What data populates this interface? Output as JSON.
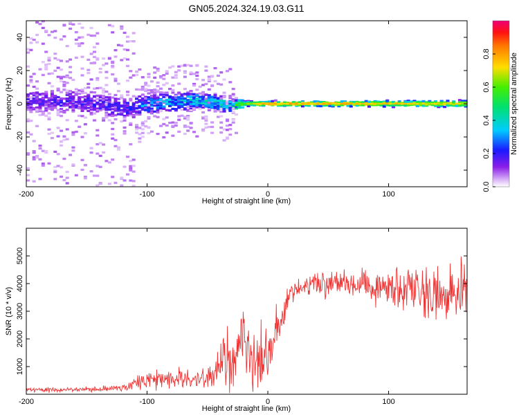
{
  "title": "GN05.2024.324.19.03.G11",
  "chart_data": [
    {
      "type": "heatmap",
      "name": "spectrogram",
      "xlabel": "Height of straight line (km)",
      "ylabel": "Frequency (Hz)",
      "xlim": [
        -200,
        165
      ],
      "ylim": [
        -50,
        50
      ],
      "xticks": [
        "-200",
        "-100",
        "0",
        "100"
      ],
      "yticks": [
        "40",
        "20",
        "0",
        "-20",
        "-40"
      ],
      "colorbar": {
        "label": "Normalized spectral amplitude",
        "range": [
          0,
          1
        ],
        "ticks": [
          "0.0",
          "0.2",
          "0.4",
          "0.6",
          "0.8"
        ]
      },
      "band_center_hz": [
        {
          "x": -200,
          "y": 2
        },
        {
          "x": -150,
          "y": 1
        },
        {
          "x": -120,
          "y": -3
        },
        {
          "x": -100,
          "y": 0
        },
        {
          "x": -60,
          "y": 2
        },
        {
          "x": -30,
          "y": -1
        },
        {
          "x": -20,
          "y": 0
        },
        {
          "x": 165,
          "y": 0
        }
      ],
      "band_halfwidth_hz": [
        {
          "x": -200,
          "y": 9
        },
        {
          "x": -120,
          "y": 8
        },
        {
          "x": -60,
          "y": 6
        },
        {
          "x": -25,
          "y": 5
        },
        {
          "x": -20,
          "y": 1.5
        },
        {
          "x": 165,
          "y": 2
        }
      ],
      "peak_amplitude": [
        {
          "x": -200,
          "y": 0.18
        },
        {
          "x": -120,
          "y": 0.22
        },
        {
          "x": -100,
          "y": 0.35
        },
        {
          "x": -60,
          "y": 0.4
        },
        {
          "x": -30,
          "y": 0.5
        },
        {
          "x": -20,
          "y": 0.65
        },
        {
          "x": 0,
          "y": 0.8
        },
        {
          "x": 100,
          "y": 0.75
        },
        {
          "x": 165,
          "y": 0.7
        }
      ]
    },
    {
      "type": "line",
      "name": "snr",
      "xlabel": "Height of straight line (km)",
      "ylabel": "SNR (10 * v/v)",
      "xlim": [
        -200,
        165
      ],
      "ylim": [
        0,
        6000
      ],
      "xticks": [
        "-200",
        "-100",
        "0",
        "100"
      ],
      "yticks": [
        "1000",
        "2000",
        "3000",
        "4000",
        "5000"
      ],
      "color": "#ee3333",
      "series": [
        {
          "name": "SNR",
          "points": [
            {
              "x": -200,
              "y": 150
            },
            {
              "x": -150,
              "y": 170
            },
            {
              "x": -120,
              "y": 250
            },
            {
              "x": -100,
              "y": 500
            },
            {
              "x": -60,
              "y": 550
            },
            {
              "x": -45,
              "y": 700
            },
            {
              "x": -30,
              "y": 1500
            },
            {
              "x": -20,
              "y": 2200
            },
            {
              "x": -12,
              "y": 1500
            },
            {
              "x": 0,
              "y": 1400
            },
            {
              "x": 10,
              "y": 2800
            },
            {
              "x": 20,
              "y": 3600
            },
            {
              "x": 30,
              "y": 3900
            },
            {
              "x": 50,
              "y": 4000
            },
            {
              "x": 80,
              "y": 4000
            },
            {
              "x": 100,
              "y": 3900
            },
            {
              "x": 120,
              "y": 3800
            },
            {
              "x": 135,
              "y": 3600
            },
            {
              "x": 150,
              "y": 3400
            },
            {
              "x": 165,
              "y": 3600
            }
          ],
          "noise": [
            {
              "x": -200,
              "y": 60
            },
            {
              "x": -120,
              "y": 100
            },
            {
              "x": -100,
              "y": 250
            },
            {
              "x": -60,
              "y": 300
            },
            {
              "x": -40,
              "y": 600
            },
            {
              "x": -30,
              "y": 1300
            },
            {
              "x": -20,
              "y": 1300
            },
            {
              "x": -5,
              "y": 900
            },
            {
              "x": 10,
              "y": 500
            },
            {
              "x": 30,
              "y": 300
            },
            {
              "x": 80,
              "y": 400
            },
            {
              "x": 110,
              "y": 800
            },
            {
              "x": 165,
              "y": 1100
            }
          ]
        }
      ]
    }
  ]
}
